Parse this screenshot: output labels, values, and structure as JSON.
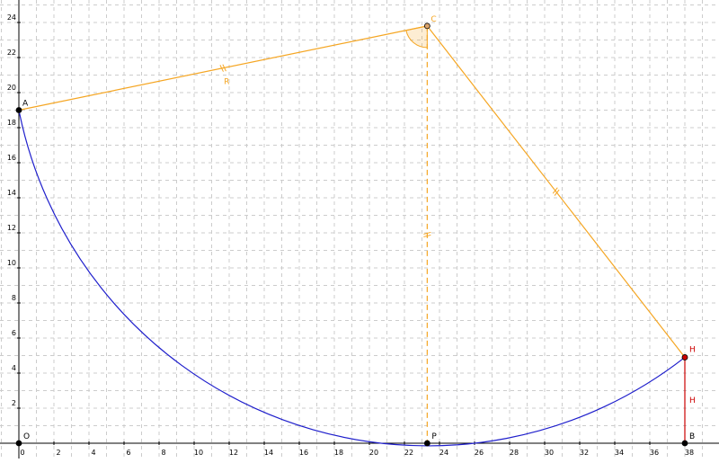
{
  "diagram": {
    "x_ticks": [
      "0",
      "2",
      "4",
      "6",
      "8",
      "10",
      "12",
      "14",
      "16",
      "18",
      "20",
      "22",
      "24",
      "26",
      "28",
      "30",
      "32",
      "34",
      "36",
      "38"
    ],
    "y_ticks": [
      "2",
      "4",
      "6",
      "8",
      "10",
      "12",
      "14",
      "16",
      "18",
      "20",
      "22",
      "24"
    ],
    "points": {
      "O": {
        "label": "O",
        "x": 0,
        "y": 0
      },
      "A": {
        "label": "A",
        "x": 0,
        "y": 19
      },
      "C": {
        "label": "C",
        "x": 23.3,
        "y": 23.8
      },
      "P": {
        "label": "P",
        "x": 23.3,
        "y": 0
      },
      "H": {
        "label": "H",
        "x": 38,
        "y": 4.9
      },
      "B": {
        "label": "B",
        "x": 38,
        "y": 0
      }
    },
    "segment_labels": {
      "radius": "R",
      "height": "H"
    },
    "colors": {
      "construction": "#f5a623",
      "arc": "#1f1fcc",
      "height": "#cc0000",
      "point": "#000000",
      "point_h": "#cc0000",
      "grid": "#cccccc",
      "axis": "#000000"
    }
  }
}
